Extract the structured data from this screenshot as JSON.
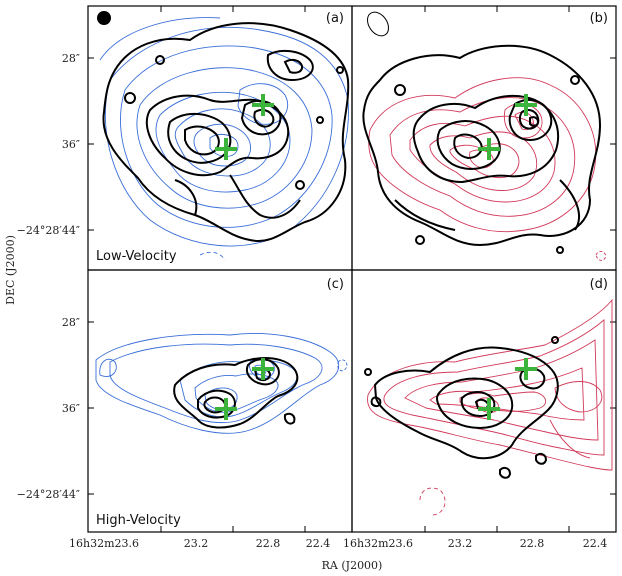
{
  "figure": {
    "x_axis_label": "RA (J2000)",
    "y_axis_label": "DEC (J2000)",
    "y_ticks": {
      "top": [
        "28″",
        "36″",
        "−24°28′44″"
      ],
      "bottom": [
        "28″",
        "36″",
        "−24°28′44″"
      ]
    },
    "x_ticks": [
      {
        "hms": "16",
        "h": "h",
        "m_val": "32",
        "m": "m",
        "s_val": "23.6"
      },
      {
        "plain": "23.2"
      },
      {
        "plain": "22.8"
      },
      {
        "plain": "22.4"
      },
      {
        "hms": "16",
        "h": "h",
        "m_val": "32",
        "m": "m",
        "s_val": "23.6"
      },
      {
        "plain": "23.2"
      },
      {
        "plain": "22.8"
      },
      {
        "plain": "22.4"
      }
    ],
    "x_tick_text": [
      "16h32m23.6",
      "23.2",
      "22.8",
      "22.4",
      "16h32m23.6",
      "23.2",
      "22.8",
      "22.4"
    ],
    "rows": {
      "top": "Low-Velocity",
      "bottom": "High-Velocity"
    },
    "panels": [
      {
        "tag": "(a)",
        "overlay_color": "#3a6fd8",
        "overlay": "blue"
      },
      {
        "tag": "(b)",
        "overlay_color": "#d23a5a",
        "overlay": "red"
      },
      {
        "tag": "(c)",
        "overlay_color": "#3a6fd8",
        "overlay": "blue"
      },
      {
        "tag": "(d)",
        "overlay_color": "#d23a5a",
        "overlay": "red"
      }
    ],
    "marker_color": "#3cb43c",
    "contour_color": "#000000"
  }
}
